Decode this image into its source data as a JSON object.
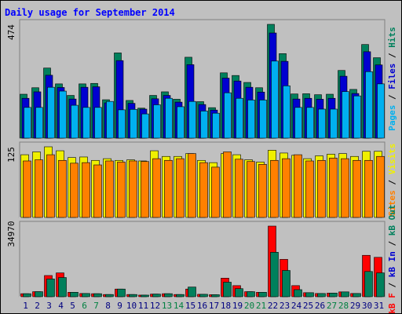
{
  "chart_data": {
    "type": "bar",
    "title": "Daily usage for September 2014",
    "days": [
      "1",
      "2",
      "3",
      "4",
      "5",
      "6",
      "7",
      "8",
      "9",
      "10",
      "11",
      "12",
      "13",
      "14",
      "15",
      "16",
      "17",
      "18",
      "19",
      "20",
      "21",
      "22",
      "23",
      "24",
      "25",
      "26",
      "27",
      "28",
      "29",
      "30",
      "31"
    ],
    "weekend_days": [
      "6",
      "7",
      "13",
      "14",
      "20",
      "21",
      "27",
      "28"
    ],
    "colors": {
      "hits": "#00805c",
      "files": "#0000d0",
      "pages": "#00b0f0",
      "visits": "#f0f000",
      "sites": "#ff8000",
      "kb_f": "#ff0000",
      "kb_in": "#0000d0",
      "kb_out": "#00805c",
      "weekday_label": "#000080",
      "weekend_label": "#008040"
    },
    "panels": [
      {
        "name": "hits-files-pages",
        "ymax_label": "474",
        "ymax": 474,
        "axis_label_parts": [
          {
            "text": "Pages",
            "color": "#00b0f0"
          },
          {
            "text": " / ",
            "color": "#000000"
          },
          {
            "text": "Files",
            "color": "#0000d0"
          },
          {
            "text": " / ",
            "color": "#000000"
          },
          {
            "text": "Hits",
            "color": "#00805c"
          }
        ],
        "series": [
          {
            "name": "Hits",
            "color": "#00805c",
            "values": [
              183,
              210,
              292,
              226,
              178,
              226,
              228,
              160,
              355,
              157,
              125,
              178,
              193,
              162,
              337,
              152,
              127,
              272,
              261,
              232,
              210,
              474,
              352,
              184,
              185,
              181,
              183,
              282,
              203,
              390,
              335
            ]
          },
          {
            "name": "Files",
            "color": "#0000d0",
            "values": [
              166,
              193,
              262,
              211,
              163,
              212,
              214,
              147,
              323,
              145,
              121,
              164,
              178,
              150,
              306,
              140,
              117,
              250,
              238,
              212,
              192,
              438,
              320,
              163,
              166,
              162,
              166,
              258,
              186,
              360,
              305
            ]
          },
          {
            "name": "Pages",
            "color": "#00b0f0",
            "values": [
              128,
              128,
              212,
              196,
              137,
              128,
              128,
              153,
              118,
              120,
              101,
              139,
              166,
              131,
              153,
              113,
              104,
              189,
              166,
              159,
              159,
              321,
              218,
              128,
              128,
              121,
              121,
              194,
              176,
              277,
              226
            ]
          }
        ]
      },
      {
        "name": "visits-sites",
        "ymax_label": "125",
        "ymax": 125,
        "axis_label_parts": [
          {
            "text": "Sites",
            "color": "#ff8000"
          },
          {
            "text": " / ",
            "color": "#000000"
          },
          {
            "text": "Visits",
            "color": "#f0f000"
          }
        ],
        "series": [
          {
            "name": "Visits",
            "color": "#f0f000",
            "values": [
              111,
              116,
              125,
              118,
              106,
              107,
              101,
              104,
              101,
              102,
              100,
              118,
              108,
              108,
              113,
              101,
              97,
              113,
              111,
              102,
              98,
              119,
              114,
              110,
              104,
              109,
              112,
              113,
              108,
              117,
              117
            ]
          },
          {
            "name": "Sites",
            "color": "#ff8000",
            "values": [
              100,
              102,
              111,
              101,
              96,
              97,
              93,
              100,
              98,
              100,
              99,
              104,
              101,
              104,
              113,
              97,
              89,
              116,
              103,
              99,
              94,
              101,
              104,
              111,
              100,
              101,
              105,
              104,
              101,
              101,
              108
            ]
          }
        ]
      },
      {
        "name": "kbf-kbin-kbout",
        "ymax_label": "34970",
        "ymax": 34970,
        "axis_label_parts": [
          {
            "text": "kB F",
            "color": "#ff0000"
          },
          {
            "text": " / ",
            "color": "#000000"
          },
          {
            "text": "kB In",
            "color": "#0000d0"
          },
          {
            "text": " / ",
            "color": "#000000"
          },
          {
            "text": "kB Out",
            "color": "#00805c"
          }
        ],
        "series": [
          {
            "name": "kB F",
            "color": "#ff0000",
            "values": [
              1500,
              2500,
              10500,
              11800,
              2200,
              1600,
              1500,
              1100,
              3800,
              1100,
              800,
              1300,
              1500,
              1100,
              3800,
              1200,
              1000,
              9200,
              5500,
              2500,
              2200,
              34970,
              18500,
              5500,
              2000,
              1600,
              1800,
              2400,
              1600,
              20500,
              19500
            ]
          },
          {
            "name": "kB Out",
            "color": "#00805c",
            "values": [
              1500,
              2500,
              8800,
              9500,
              2200,
              1600,
              1500,
              1100,
              3800,
              1100,
              800,
              1300,
              1500,
              1100,
              4800,
              1200,
              1000,
              7200,
              4000,
              2500,
              2200,
              22000,
              13000,
              3500,
              2000,
              1600,
              1800,
              2400,
              1600,
              12500,
              11800
            ]
          }
        ]
      }
    ]
  }
}
